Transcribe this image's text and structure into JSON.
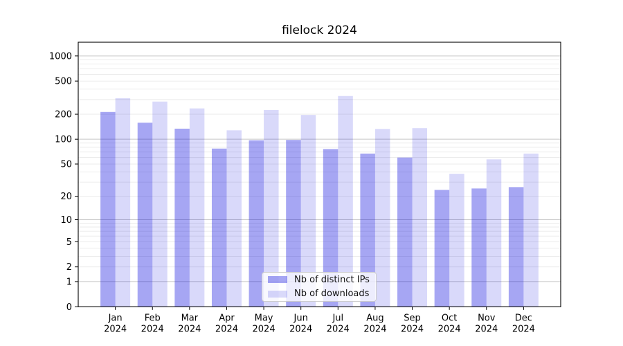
{
  "title": "filelock 2024",
  "legend": {
    "items": [
      {
        "label": "Nb of distinct IPs",
        "color": "rgba(0,0,220,0.35)"
      },
      {
        "label": "Nb of downloads",
        "color": "rgba(0,0,220,0.15)"
      }
    ]
  },
  "chart_data": {
    "type": "bar",
    "title": "filelock 2024",
    "categories": [
      "Jan 2024",
      "Feb 2024",
      "Mar 2024",
      "Apr 2024",
      "May 2024",
      "Jun 2024",
      "Jul 2024",
      "Aug 2024",
      "Sep 2024",
      "Oct 2024",
      "Nov 2024",
      "Dec 2024"
    ],
    "series": [
      {
        "name": "Nb of distinct IPs",
        "color": "rgba(0,0,220,0.35)",
        "values": [
          213,
          158,
          134,
          77,
          97,
          98,
          76,
          67,
          60,
          24,
          25,
          26
        ]
      },
      {
        "name": "Nb of downloads",
        "color": "rgba(0,0,220,0.15)",
        "values": [
          311,
          284,
          235,
          128,
          225,
          196,
          331,
          133,
          136,
          38,
          57,
          67
        ]
      }
    ],
    "yscale": "log1p",
    "y_ticks": [
      0,
      1,
      2,
      5,
      10,
      20,
      50,
      100,
      200,
      500,
      1000
    ],
    "ylim": [
      0,
      1460
    ],
    "grid": true,
    "legend_position": "lower center",
    "colors": {
      "major_grid": "#c6c6c6",
      "minor_grid": "#e9e9e9",
      "spine": "#000000"
    }
  }
}
